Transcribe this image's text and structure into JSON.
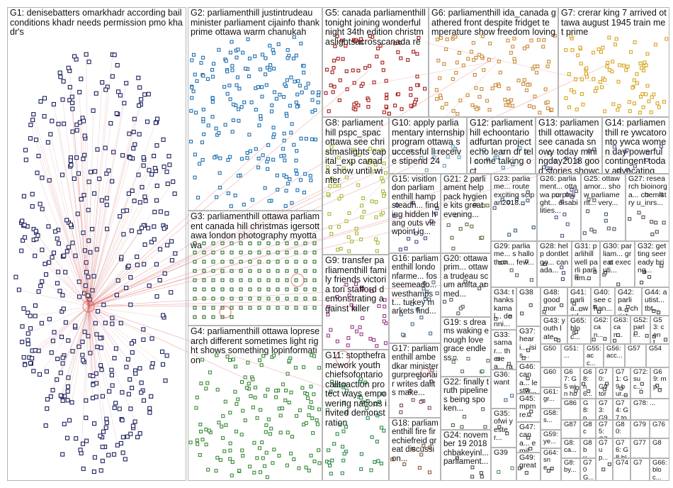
{
  "groups": [
    {
      "id": "g1",
      "label": "G1: denisebatters omarkhadr according bail conditions khadr needs permission pmo khadr's",
      "color": "#1a1f5c",
      "density": 0.6
    },
    {
      "id": "g2",
      "label": "G2: parliamenthill justintrudeau minister parliament cijainfo thank prime ottawa warm chanukah",
      "color": "#1f6fb0",
      "density": 0.5
    },
    {
      "id": "g3",
      "label": "G3: parliamenthill ottawa parliament canada hill christmas igersottawa london photography myottawa",
      "color": "#2b6b2b",
      "density": 0.6
    },
    {
      "id": "g4",
      "label": "G4: parliamenthill ottawa lopresearch different sometimes light right shows something lopinformation",
      "color": "#3a8a3a",
      "density": 0.5
    },
    {
      "id": "g5",
      "label": "G5: canada parliamenthill tonight joining wonderful night 34th edition christmaslightsacrosscanada re",
      "color": "#a31c1c",
      "density": 0.55
    },
    {
      "id": "g6",
      "label": "G6: parliamenthill ida_canada gathered front despite fridget temperature show freedom loving",
      "color": "#c98a3a",
      "density": 0.55
    },
    {
      "id": "g7",
      "label": "G7: crerar king 7 arrived ottawa august 1945 train met prime",
      "color": "#d9a520",
      "density": 0.55
    },
    {
      "id": "g8",
      "label": "G8: parliamenthill pspc_spac ottawa see christmaslights capital_exp canada show until winter",
      "color": "#a8b832",
      "density": 0.5
    },
    {
      "id": "g9",
      "label": "G9: transfer parliamenthill family friends victoria tori stafford demonstrating against killer",
      "color": "#9a3a8a",
      "density": 0.45
    },
    {
      "id": "g10",
      "label": "G10: apply parliamentary internship program ottawa successful ll receive stipend 24",
      "color": "#6aa0b8",
      "density": 0.35
    },
    {
      "id": "g11",
      "label": "G11: stoptheframework youth chiefsofontario calltoaction protect ways empowering nations invited demonstration",
      "color": "#2f8a4a",
      "density": 0.45
    },
    {
      "id": "g12",
      "label": "G12: parliamenthill echoontario adfurtan projectecho learn dr tell come talking oct",
      "color": "#4a8aa8",
      "density": 0.35
    },
    {
      "id": "g13",
      "label": "G13: parliamenthill ottawacity see canada snowy today miningday2018 good stories showcasing",
      "color": "#5a6a9a",
      "density": 0.35
    },
    {
      "id": "g14",
      "label": "G14: parliamenthill re ywcatoronto ywca women day powerful contingent today advocating",
      "color": "#6a5a9a",
      "density": 0.35
    },
    {
      "id": "g15",
      "label": "G15: visitlondon parliamenthill hampsteadh... finding hidden hang outs viewpoint ig...",
      "color": "#4a4a8a",
      "density": 0.3
    },
    {
      "id": "g16",
      "label": "G16: parliamenthill londonfarme... fosseemeado... westhampst... turkey markets find...",
      "color": "#4a6a8a",
      "density": 0.3
    },
    {
      "id": "g17",
      "label": "G17: parliamenthill ambedkar minister gurpreetonair writes dalits make...",
      "color": "#7a4a6a",
      "density": 0.3
    },
    {
      "id": "g18",
      "label": "G18: parliamenthill fire firechiefreid great discussion...",
      "color": "#8a5a3a",
      "density": 0.3
    },
    {
      "id": "g19",
      "label": "G19: s dreams waking enough love grace endless...",
      "color": "#5a7a5a",
      "density": 0.3
    },
    {
      "id": "g20",
      "label": "G20: ottawaprim... ottawa trudeau scum anifta armed...",
      "color": "#5a5a5a",
      "density": 0.3
    },
    {
      "id": "g21",
      "label": "G21: 2 parliament help pack hygiene kits great evening...",
      "color": "#6a6a4a",
      "density": 0.3
    },
    {
      "id": "g22",
      "label": "G22: finally truth pipelines being spoken...",
      "color": "#4a6a4a",
      "density": 0.3
    },
    {
      "id": "g23",
      "label": "G23: parliame... route exciting scipan2018...",
      "color": "#3a5a7a",
      "density": 0.3
    },
    {
      "id": "g24",
      "label": "G24: november 19 2018 chbakeyinl... parliament...",
      "color": "#4a4a4a",
      "density": 0.3
    },
    {
      "id": "g25",
      "label": "G25: ottawamor... show parliament... very...",
      "color": "#4a5a6a",
      "density": 0.3
    },
    {
      "id": "g26",
      "label": "G26: parliament... ottawa purplelight... disabilities...",
      "color": "#6a4a8a",
      "density": 0.3
    },
    {
      "id": "g27",
      "label": "G27: research bioinorga... chemistry u_inrs...",
      "color": "#5a4a4a",
      "density": 0.3
    },
    {
      "id": "g28",
      "label": "G28: help dontletgo... canada...",
      "color": "#4a4a6a",
      "density": 0.3
    },
    {
      "id": "g29",
      "label": "G29: parliame... s hallothon... few...",
      "color": "#6a5a4a",
      "density": 0.3
    },
    {
      "id": "g30",
      "label": "G30: parliam... great executi...",
      "color": "#4a4a5a",
      "density": 0.3
    },
    {
      "id": "g31",
      "label": "G31: parlihill well parli parliam...",
      "color": "#5a5a6a",
      "density": 0.3
    },
    {
      "id": "g32",
      "label": "G32: getting seeready bring...",
      "color": "#4a4a4a",
      "density": 0.3
    },
    {
      "id": "g33",
      "label": "G33: samar... therea... ratriao...",
      "color": "#5a4a5a",
      "density": 0.3
    },
    {
      "id": "g34",
      "label": "G34: thanks kamal... denni...",
      "color": "#4a5a5a",
      "density": 0.3
    },
    {
      "id": "g35",
      "label": "G35: ofwi yester...",
      "color": "#4a4a4a",
      "density": 0.3
    },
    {
      "id": "g36",
      "label": "G36: want",
      "color": "#4a6a9a",
      "density": 0.3
    },
    {
      "id": "g37",
      "label": "G37: heari... isis...",
      "color": "#4a4a4a",
      "density": 0.3
    },
    {
      "id": "g38",
      "label": "G38",
      "color": "#4a4a4a",
      "density": 0.3
    },
    {
      "id": "g39",
      "label": "G39",
      "color": "#5a8a5a",
      "density": 0.3
    },
    {
      "id": "g40",
      "label": "G40: see chan...",
      "color": "#4a4a4a",
      "density": 0.3
    },
    {
      "id": "g41",
      "label": "G41: parlia... world...",
      "color": "#4a4a4a",
      "density": 0.3
    },
    {
      "id": "g42",
      "label": "G42: parlia... christ...",
      "color": "#4a4a4a",
      "density": 0.3
    },
    {
      "id": "g43",
      "label": "G43: youth late...",
      "color": "#4a4a4a",
      "density": 0.3
    },
    {
      "id": "g44",
      "label": "G44: autist... tbt...",
      "color": "#4a4a4a",
      "density": 0.3
    },
    {
      "id": "g45",
      "label": "G45: mpm re...",
      "color": "#4a4a4a",
      "density": 0.3
    },
    {
      "id": "g46",
      "label": "G46: cana... lestw...",
      "color": "#4a4a4a",
      "density": 0.3
    },
    {
      "id": "g47",
      "label": "G47: cana... emil...",
      "color": "#4a4a4a",
      "density": 0.3
    },
    {
      "id": "g48",
      "label": "G48: good morn...",
      "color": "#4a4a4a",
      "density": 0.3
    },
    {
      "id": "g49",
      "label": "G49: great",
      "color": "#4a4a4a",
      "density": 0.3
    },
    {
      "id": "g50",
      "label": "G50",
      "color": "#4a4a4a",
      "density": 0.3
    },
    {
      "id": "g51",
      "label": "G51: ...",
      "color": "#4a4a4a",
      "density": 0.3
    },
    {
      "id": "g52",
      "label": "G52: parli...",
      "color": "#4a4a4a",
      "density": 0.3
    },
    {
      "id": "g53",
      "label": "G53: cent...",
      "color": "#4a4a4a",
      "density": 0.3
    },
    {
      "id": "g54",
      "label": "G54",
      "color": "#4a4a4a",
      "density": 0.3
    },
    {
      "id": "g55",
      "label": "G55: acc...",
      "color": "#4a4a4a",
      "density": 0.3
    },
    {
      "id": "g56",
      "label": "G56: acc...",
      "color": "#4a4a4a",
      "density": 0.3
    },
    {
      "id": "g57",
      "label": "G57",
      "color": "#4a4a4a",
      "density": 0.3
    },
    {
      "id": "g58",
      "label": "G58: s...",
      "color": "#4a4a4a",
      "density": 0.3
    },
    {
      "id": "g59",
      "label": "G59: ye...",
      "color": "#4a4a4a",
      "density": 0.3
    },
    {
      "id": "g60",
      "label": "G60",
      "color": "#4a4a4a",
      "density": 0.3
    },
    {
      "id": "g61",
      "label": "G61: gr...",
      "color": "#4a4a4a",
      "density": 0.3
    },
    {
      "id": "g62",
      "label": "G62: can...",
      "color": "#4a4a4a",
      "density": 0.3
    },
    {
      "id": "g63",
      "label": "G63: can...",
      "color": "#4a4a4a",
      "density": 0.3
    },
    {
      "id": "g64",
      "label": "G64: sne...",
      "color": "#4a4a4a",
      "density": 0.3
    },
    {
      "id": "g65",
      "label": "G65: bloc...",
      "color": "#4a4a4a",
      "density": 0.3
    },
    {
      "id": "g66",
      "label": "G66: bloc...",
      "color": "#4a4a4a",
      "density": 0.3
    },
    {
      "id": "g67",
      "label": "G67: G5 win hol...",
      "color": "#4a4a4a",
      "density": 0.3
    },
    {
      "id": "g68",
      "label": "G68: n6...",
      "color": "#4a4a4a",
      "density": 0.3
    },
    {
      "id": "g69",
      "label": "G69: mp...",
      "color": "#4a4a4a",
      "density": 0.3
    },
    {
      "id": "g70",
      "label": "G70: G9 tori...",
      "color": "#4a4a4a",
      "density": 0.3
    },
    {
      "id": "g71",
      "label": "G71: G9 bur...",
      "color": "#4a4a4a",
      "density": 0.3
    },
    {
      "id": "g72",
      "label": "G72: suc...",
      "color": "#4a4a4a",
      "density": 0.3
    },
    {
      "id": "g73",
      "label": "G73: G9 ori...",
      "color": "#4a4a4a",
      "density": 0.3
    },
    {
      "id": "g74",
      "label": "G74: G7 toc...",
      "color": "#4a4a4a",
      "density": 0.3
    },
    {
      "id": "g75",
      "label": "G75: G7 ...",
      "color": "#4a4a4a",
      "density": 0.3
    },
    {
      "id": "g76",
      "label": "G76: G8 bloc...",
      "color": "#4a4a4a",
      "density": 0.3
    },
    {
      "id": "g77",
      "label": "G77",
      "color": "#4a4a4a",
      "density": 0.3
    },
    {
      "id": "g78",
      "label": "G78: ...",
      "color": "#4a4a4a",
      "density": 0.3
    },
    {
      "id": "g79",
      "label": "G79",
      "color": "#4a4a4a",
      "density": 0.3
    },
    {
      "id": "g80",
      "label": "G80: ...",
      "color": "#4a4a4a",
      "density": 0.3
    },
    {
      "id": "g81",
      "label": "G8: ca...",
      "color": "#4a4a4a",
      "density": 0.3
    },
    {
      "id": "g82",
      "label": "G8 ca...",
      "color": "#4a4a4a",
      "density": 0.3
    },
    {
      "id": "g83",
      "label": "G8: pa...",
      "color": "#4a4a4a",
      "density": 0.3
    },
    {
      "id": "g84",
      "label": "G7 up...",
      "color": "#4a4a4a",
      "density": 0.3
    },
    {
      "id": "g85",
      "label": "G8: by...",
      "color": "#4a4a4a",
      "density": 0.3
    },
    {
      "id": "g86",
      "label": "G86",
      "color": "#4a4a4a",
      "density": 0.3
    },
    {
      "id": "g87",
      "label": "G87",
      "color": "#4a4a4a",
      "density": 0.3
    },
    {
      "id": "g88",
      "label": "G8 bu...",
      "color": "#4a4a4a",
      "density": 0.3
    },
    {
      "id": "g89",
      "label": "G70 G...",
      "color": "#4a4a4a",
      "density": 0.3
    },
    {
      "id": "g90",
      "label": "G74",
      "color": "#4a4a4a",
      "density": 0.3
    },
    {
      "id": "g91",
      "label": "G76",
      "color": "#4a4a4a",
      "density": 0.3
    },
    {
      "id": "g92",
      "label": "G8",
      "color": "#4a4a4a",
      "density": 0.3
    },
    {
      "id": "g93",
      "label": "G7",
      "color": "#4a4a4a",
      "density": 0.3
    }
  ]
}
